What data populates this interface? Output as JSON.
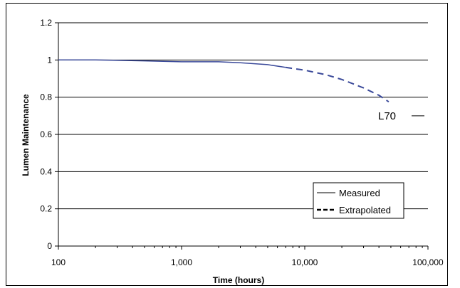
{
  "chart_data": {
    "type": "line",
    "xlabel": "Time (hours)",
    "ylabel": "Lumen Maintenance",
    "x_scale": "log",
    "xlim": [
      100,
      100000
    ],
    "ylim": [
      0,
      1.2
    ],
    "x_ticks": [
      {
        "value": 100,
        "label": "100"
      },
      {
        "value": 1000,
        "label": "1,000"
      },
      {
        "value": 10000,
        "label": "10,000"
      },
      {
        "value": 100000,
        "label": "100,000"
      }
    ],
    "y_ticks": [
      {
        "value": 0,
        "label": "0"
      },
      {
        "value": 0.2,
        "label": "0.2"
      },
      {
        "value": 0.4,
        "label": "0.4"
      },
      {
        "value": 0.6,
        "label": "0.6"
      },
      {
        "value": 0.8,
        "label": "0.8"
      },
      {
        "value": 1,
        "label": "1"
      },
      {
        "value": 1.2,
        "label": "1.2"
      }
    ],
    "grid": "horizontal",
    "legend_position": "bottom-right",
    "series": [
      {
        "name": "Measured",
        "style": "solid",
        "color": "#3b4a9a",
        "x": [
          100,
          200,
          500,
          1000,
          2000,
          3000,
          5000,
          7000
        ],
        "y": [
          1.0,
          1.0,
          0.995,
          0.99,
          0.99,
          0.985,
          0.975,
          0.96
        ]
      },
      {
        "name": "Extrapolated",
        "style": "dashed",
        "color": "#3b4a9a",
        "x": [
          7000,
          10000,
          15000,
          20000,
          30000,
          40000,
          48000
        ],
        "y": [
          0.96,
          0.945,
          0.92,
          0.895,
          0.85,
          0.81,
          0.775
        ]
      }
    ],
    "annotations": [
      {
        "text": "L70",
        "y": 0.7
      }
    ]
  }
}
